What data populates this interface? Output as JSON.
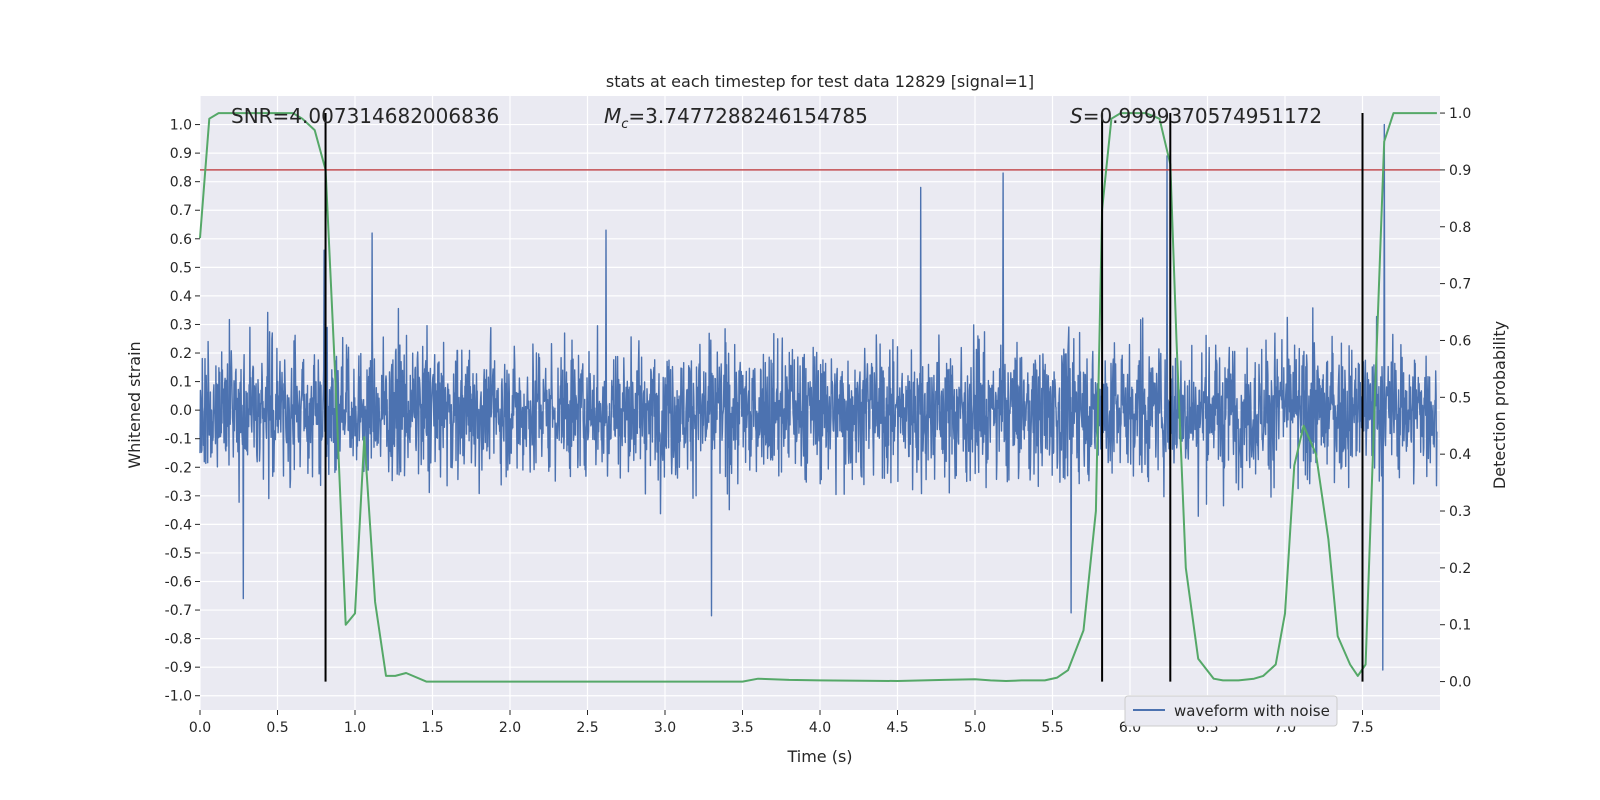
{
  "chart_data": {
    "type": "line",
    "title": "stats at each timestep for test data 12829 [signal=1]",
    "xlabel": "Time (s)",
    "ylabel_left": "Whitened strain",
    "ylabel_right": "Detection probability",
    "xlim": [
      0.0,
      8.0
    ],
    "ylim_left": [
      -1.05,
      1.1
    ],
    "ylim_right": [
      -0.05,
      1.03
    ],
    "x_ticks": [
      "0.0",
      "0.5",
      "1.0",
      "1.5",
      "2.0",
      "2.5",
      "3.0",
      "3.5",
      "4.0",
      "4.5",
      "5.0",
      "5.5",
      "6.0",
      "6.5",
      "7.0",
      "7.5"
    ],
    "y_left_ticks": [
      "1.0",
      "0.9",
      "0.8",
      "0.7",
      "0.6",
      "0.5",
      "0.4",
      "0.3",
      "0.2",
      "0.1",
      "0.0",
      "-0.1",
      "-0.2",
      "-0.3",
      "-0.4",
      "-0.5",
      "-0.6",
      "-0.7",
      "-0.8",
      "-0.9",
      "-1.0"
    ],
    "y_right_ticks": [
      "1.0",
      "0.9",
      "0.8",
      "0.7",
      "0.6",
      "0.5",
      "0.4",
      "0.3",
      "0.2",
      "0.1",
      "0.0"
    ],
    "grid": true,
    "legend": {
      "position": "lower-right",
      "entries": [
        "waveform with noise"
      ]
    },
    "annotations": {
      "snr": "SNR=4.007314682006836",
      "mc_symbol": "M",
      "mc_sub": "c",
      "mc_value": "=3.7477288246154785",
      "s_symbol": "S",
      "s_value": "=0.9999370574951172"
    },
    "threshold": {
      "y_prob": 0.9,
      "color": "#c44e52"
    },
    "vlines_x": [
      0.81,
      5.82,
      6.26,
      7.5
    ],
    "strain_envelope": {
      "typical_abs": 0.35,
      "peaks": [
        {
          "x": 0.28,
          "y": -0.66
        },
        {
          "x": 0.8,
          "y": 0.56
        },
        {
          "x": 1.11,
          "y": 0.62
        },
        {
          "x": 2.62,
          "y": 0.63
        },
        {
          "x": 3.3,
          "y": -0.72
        },
        {
          "x": 4.65,
          "y": 0.78
        },
        {
          "x": 5.18,
          "y": 0.83
        },
        {
          "x": 5.62,
          "y": -0.71
        },
        {
          "x": 6.24,
          "y": 0.89
        },
        {
          "x": 7.64,
          "y": 1.0
        },
        {
          "x": 7.63,
          "y": -0.91
        }
      ]
    },
    "series": [
      {
        "name": "waveform with noise",
        "color": "#4c72b0"
      },
      {
        "color": "#55a868",
        "x": [
          0.0,
          0.06,
          0.12,
          0.2,
          0.3,
          0.4,
          0.5,
          0.6,
          0.66,
          0.74,
          0.81,
          0.87,
          0.94,
          1.0,
          1.06,
          1.13,
          1.2,
          1.26,
          1.33,
          1.46,
          1.6,
          1.8,
          2.0,
          2.5,
          3.0,
          3.5,
          3.6,
          3.8,
          4.0,
          4.5,
          4.8,
          5.0,
          5.1,
          5.2,
          5.3,
          5.45,
          5.53,
          5.6,
          5.7,
          5.78,
          5.82,
          5.88,
          5.94,
          6.0,
          6.1,
          6.19,
          6.26,
          6.3,
          6.36,
          6.44,
          6.54,
          6.6,
          6.7,
          6.8,
          6.86,
          6.94,
          7.0,
          7.06,
          7.12,
          7.2,
          7.28,
          7.34,
          7.42,
          7.47,
          7.52,
          7.58,
          7.64,
          7.7,
          7.8,
          7.98
        ],
        "y": [
          0.78,
          0.99,
          1.0,
          1.0,
          1.0,
          1.0,
          1.0,
          1.0,
          0.99,
          0.97,
          0.9,
          0.55,
          0.1,
          0.12,
          0.43,
          0.14,
          0.01,
          0.01,
          0.015,
          0.0,
          0.0,
          0.0,
          0.0,
          0.0,
          0.0,
          0.0,
          0.005,
          0.003,
          0.002,
          0.001,
          0.003,
          0.004,
          0.002,
          0.001,
          0.002,
          0.002,
          0.007,
          0.02,
          0.09,
          0.3,
          0.83,
          0.99,
          1.0,
          1.0,
          1.0,
          0.99,
          0.91,
          0.6,
          0.2,
          0.04,
          0.005,
          0.002,
          0.002,
          0.005,
          0.01,
          0.03,
          0.12,
          0.38,
          0.45,
          0.4,
          0.25,
          0.08,
          0.03,
          0.01,
          0.03,
          0.5,
          0.95,
          1.0,
          1.0,
          1.0
        ]
      }
    ]
  }
}
